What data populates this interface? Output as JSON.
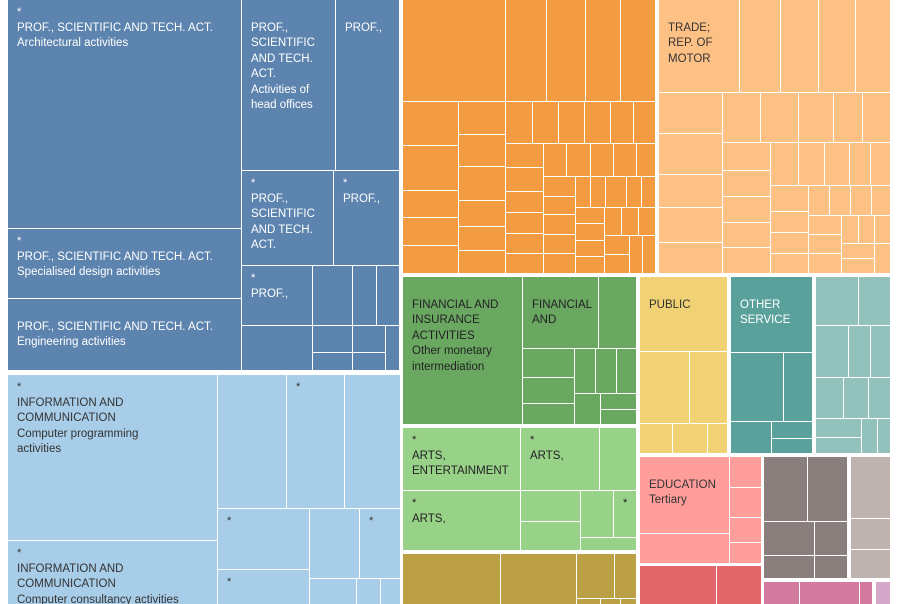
{
  "chart_data": {
    "type": "treemap",
    "groups": [
      {
        "key": "prof",
        "color": "#5d84ae",
        "text_color": "#ffffff",
        "labels": [
          {
            "star": "*",
            "category": "PROF., SCIENTIFIC AND TECH. ACT.",
            "sub": "Architectural activities"
          },
          {
            "star": "*",
            "category": "PROF., SCIENTIFIC AND TECH. ACT.",
            "sub": "Specialised design activities"
          },
          {
            "star": "",
            "category": "PROF., SCIENTIFIC AND TECH. ACT.",
            "sub": "Engineering activities"
          },
          {
            "star": "",
            "category": "PROF., SCIENTIFIC AND TECH. ACT.",
            "sub": "Activities of head offices"
          },
          {
            "star": "",
            "category": "PROF.,",
            "sub": ""
          },
          {
            "star": "*",
            "category": "PROF., SCIENTIFIC AND TECH. ACT.",
            "sub": ""
          },
          {
            "star": "*",
            "category": "PROF.,",
            "sub": ""
          },
          {
            "star": "*",
            "category": "PROF.,",
            "sub": ""
          }
        ]
      },
      {
        "key": "info",
        "color": "#a8cde8",
        "text_color": "#333333",
        "labels": [
          {
            "star": "*",
            "category": "INFORMATION AND COMMUNICATION",
            "sub": "Computer programming activities"
          },
          {
            "star": "*",
            "category": "INFORMATION AND COMMUNICATION",
            "sub": "Computer consultancy activities"
          },
          {
            "star": "*",
            "category": "",
            "sub": ""
          }
        ]
      },
      {
        "key": "manufacturing",
        "color": "#f29b42",
        "text_color": "#333333",
        "labels": []
      },
      {
        "key": "trade",
        "color": "#fdc186",
        "text_color": "#333333",
        "labels": [
          {
            "star": "",
            "category": "TRADE; REP. OF MOTOR",
            "sub": ""
          }
        ]
      },
      {
        "key": "finance",
        "color": "#6aa862",
        "text_color": "#222222",
        "labels": [
          {
            "star": "",
            "category": "FINANCIAL AND INSURANCE ACTIVITIES",
            "sub": "Other monetary intermediation"
          },
          {
            "star": "",
            "category": "FINANCIAL AND",
            "sub": ""
          }
        ]
      },
      {
        "key": "arts",
        "color": "#98d288",
        "text_color": "#222222",
        "labels": [
          {
            "star": "*",
            "category": "ARTS, ENTERTAINMENT",
            "sub": ""
          },
          {
            "star": "*",
            "category": "ARTS,",
            "sub": ""
          },
          {
            "star": "*",
            "category": "ARTS,",
            "sub": ""
          },
          {
            "star": "*",
            "category": "",
            "sub": ""
          }
        ]
      },
      {
        "key": "olive",
        "color": "#bca045",
        "text_color": "#333333",
        "labels": []
      },
      {
        "key": "public",
        "color": "#f0d174",
        "text_color": "#333333",
        "labels": [
          {
            "star": "",
            "category": "PUBLIC",
            "sub": ""
          }
        ]
      },
      {
        "key": "other_service",
        "color": "#5aa19c",
        "text_color": "#ffffff",
        "labels": [
          {
            "star": "",
            "category": "OTHER SERVICE",
            "sub": ""
          }
        ]
      },
      {
        "key": "lightteal",
        "color": "#93c1bc",
        "text_color": "#333333",
        "labels": []
      },
      {
        "key": "education",
        "color": "#ff9d9a",
        "text_color": "#333333",
        "labels": [
          {
            "star": "",
            "category": "EDUCATION",
            "sub": "Tertiary"
          }
        ]
      },
      {
        "key": "red",
        "color": "#e2676a",
        "text_color": "#333333",
        "labels": []
      },
      {
        "key": "brown",
        "color": "#8a7f7d",
        "text_color": "#ffffff",
        "labels": []
      },
      {
        "key": "lightgray",
        "color": "#bfb3b0",
        "text_color": "#333333",
        "labels": []
      },
      {
        "key": "pink",
        "color": "#d57a9f",
        "text_color": "#333333",
        "labels": []
      },
      {
        "key": "lightpink",
        "color": "#d5a7c9",
        "text_color": "#333333",
        "labels": []
      }
    ]
  }
}
